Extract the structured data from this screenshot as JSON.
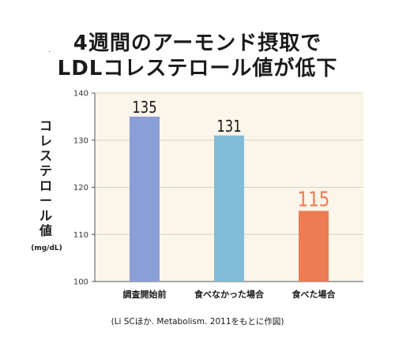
{
  "title_line1": "4週間のアーモンド摂取で",
  "title_line2": "LDLコレステロール値が低下",
  "ylabel": "コレステロール値",
  "unit": "(mg/dL)",
  "note": "(Li SCほか. Metabolism. 2011をもとに作図)",
  "colors": {
    "plot_bg": "#fbf5ea",
    "bar1": "#8a9fd6",
    "bar2": "#82bcd9",
    "bar3": "#ed7b54",
    "highlight_label": "#ed7b54"
  },
  "chart_data": {
    "type": "bar",
    "categories": [
      "調査開始前",
      "食べなかった場合",
      "食べた場合"
    ],
    "values": [
      135,
      131,
      115
    ],
    "data_labels": [
      "135",
      "131",
      "115"
    ],
    "ylim": [
      100,
      140
    ],
    "yticks": [
      100,
      110,
      120,
      130,
      140
    ],
    "ylabel": "コレステロール値",
    "grid": true,
    "legend": "none"
  }
}
